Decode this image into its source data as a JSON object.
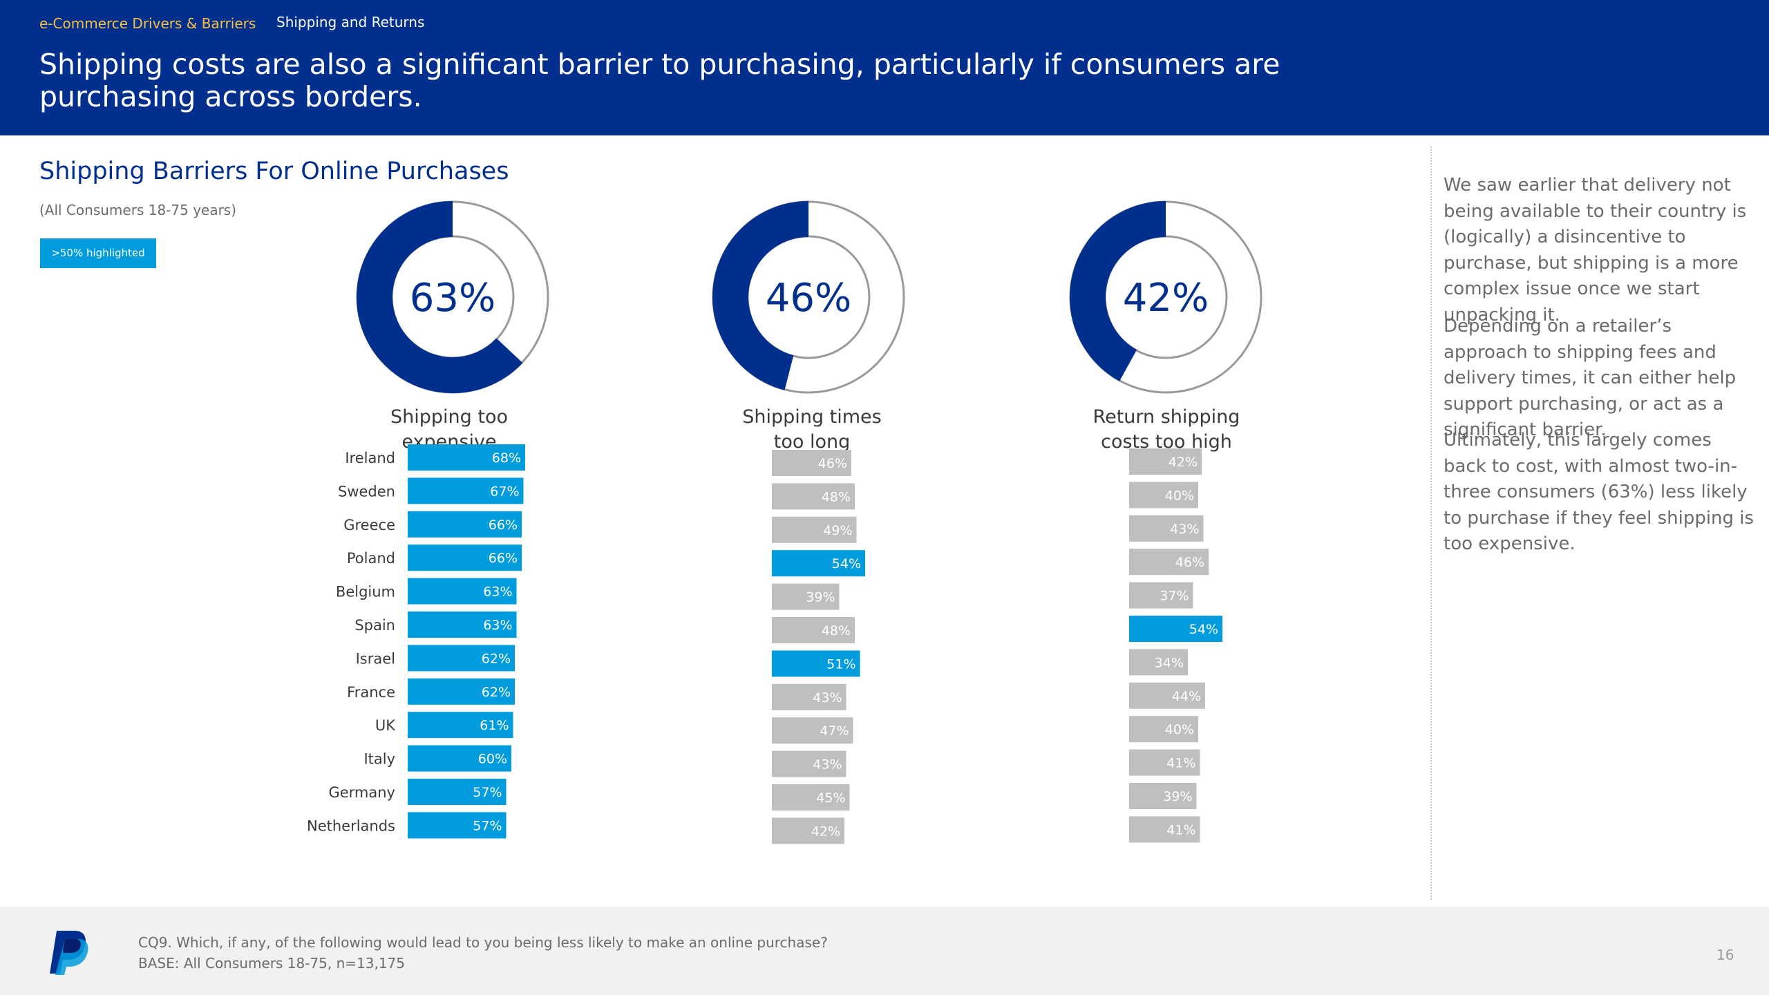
{
  "header": {
    "section": "e-Commerce Drivers & Barriers",
    "topic": "Shipping and Returns",
    "headline": "Shipping costs are also a significant barrier to purchasing, particularly if consumers are purchasing across borders."
  },
  "chart_title": "Shipping Barriers For Online Purchases",
  "chart_subtitle": "(All Consumers 18-75 years)",
  "highlight_note": ">50% highlighted",
  "colors": {
    "brand_navy": "#012f8e",
    "highlight_blue": "#009cde",
    "neutral_bar": "#bfbfbf",
    "ring_track": "#9a9a9a"
  },
  "chart_data": [
    {
      "type": "bar",
      "title": "Shipping too expensive",
      "title_lines": [
        "Shipping too",
        "expensive"
      ],
      "overall": 63,
      "overall_label": "63%",
      "categories": [
        "Ireland",
        "Sweden",
        "Greece",
        "Poland",
        "Belgium",
        "Spain",
        "Israel",
        "France",
        "UK",
        "Italy",
        "Germany",
        "Netherlands"
      ],
      "values": [
        68,
        67,
        66,
        66,
        63,
        63,
        62,
        62,
        61,
        60,
        57,
        57
      ],
      "highlight_threshold": 50
    },
    {
      "type": "bar",
      "title": "Shipping times too long",
      "title_lines": [
        "Shipping times",
        "too long"
      ],
      "overall": 46,
      "overall_label": "46%",
      "categories": [
        "Ireland",
        "Sweden",
        "Greece",
        "Poland",
        "Belgium",
        "Spain",
        "Israel",
        "France",
        "UK",
        "Italy",
        "Germany",
        "Netherlands"
      ],
      "values": [
        46,
        48,
        49,
        54,
        39,
        48,
        51,
        43,
        47,
        43,
        45,
        42
      ],
      "highlight_threshold": 50
    },
    {
      "type": "bar",
      "title": "Return shipping costs too high",
      "title_lines": [
        "Return shipping",
        "costs too high"
      ],
      "overall": 42,
      "overall_label": "42%",
      "categories": [
        "Ireland",
        "Sweden",
        "Greece",
        "Poland",
        "Belgium",
        "Spain",
        "Israel",
        "France",
        "UK",
        "Italy",
        "Germany",
        "Netherlands"
      ],
      "values": [
        42,
        40,
        43,
        46,
        37,
        54,
        34,
        44,
        40,
        41,
        39,
        41
      ],
      "highlight_threshold": 50
    }
  ],
  "notes": [
    "We saw earlier that delivery not being available to their country is (logically) a disincentive to purchase, but shipping is a more complex issue once we start unpacking it.",
    "Depending on a retailer’s approach to shipping fees and delivery times, it can either help support purchasing, or act as a significant barrier.",
    "Ultimately, this largely comes back to cost, with almost two-in-three consumers (63%) less likely to purchase if they feel shipping is too expensive."
  ],
  "footer": {
    "question": "CQ9. Which, if any, of the following would lead to you being less likely to make an online purchase?",
    "base": "BASE: All Consumers 18-75, n=13,175",
    "page": "16"
  },
  "logo_icon": "paypal-logo-icon"
}
